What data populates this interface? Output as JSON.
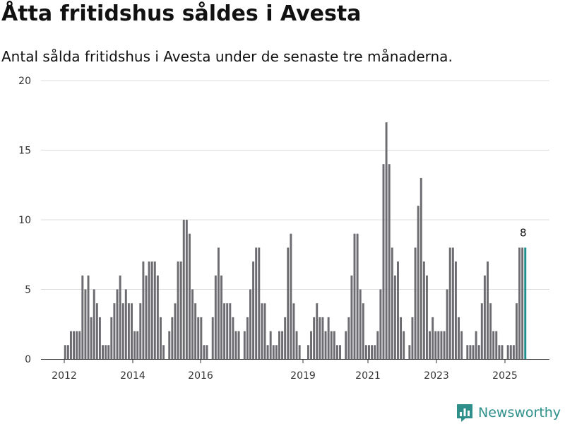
{
  "title": "Åtta fritidshus såldes i Avesta",
  "subtitle": "Antal sålda fritidshus i Avesta under de senaste tre månaderna.",
  "brand": {
    "name": "Newsworthy"
  },
  "colors": {
    "bar": "#6d6c71",
    "highlight": "#1d8f8d",
    "grid": "#dcdcdc",
    "brand": "#2f8f8a"
  },
  "chart_data": {
    "type": "bar",
    "title": "",
    "xlabel": "",
    "ylabel": "",
    "ylim": [
      0,
      20
    ],
    "yticks": [
      0,
      5,
      10,
      15,
      20
    ],
    "xticks": [
      "2012",
      "2014",
      "2016",
      "2019",
      "2021",
      "2023",
      "2025"
    ],
    "highlight_last": true,
    "annotation": "8",
    "values": [
      1,
      1,
      2,
      2,
      2,
      2,
      6,
      5,
      6,
      3,
      5,
      4,
      3,
      1,
      1,
      1,
      3,
      4,
      5,
      6,
      4,
      5,
      4,
      4,
      2,
      2,
      4,
      7,
      6,
      7,
      7,
      7,
      6,
      3,
      1,
      0,
      2,
      3,
      4,
      7,
      7,
      10,
      10,
      9,
      5,
      4,
      3,
      3,
      1,
      1,
      0,
      3,
      6,
      8,
      6,
      4,
      4,
      4,
      3,
      2,
      2,
      0,
      2,
      3,
      5,
      7,
      8,
      8,
      4,
      4,
      1,
      2,
      1,
      1,
      2,
      2,
      3,
      8,
      9,
      4,
      2,
      1,
      0,
      0,
      1,
      2,
      3,
      4,
      3,
      3,
      2,
      3,
      2,
      2,
      1,
      1,
      0,
      2,
      3,
      6,
      9,
      9,
      5,
      4,
      1,
      1,
      1,
      1,
      2,
      5,
      14,
      17,
      14,
      8,
      6,
      7,
      3,
      2,
      0,
      1,
      3,
      8,
      11,
      13,
      7,
      6,
      2,
      3,
      2,
      2,
      2,
      2,
      5,
      8,
      8,
      7,
      3,
      2,
      0,
      1,
      1,
      1,
      2,
      1,
      4,
      6,
      7,
      4,
      2,
      2,
      1,
      1,
      0,
      1,
      1,
      1,
      4,
      8,
      8,
      8
    ]
  }
}
